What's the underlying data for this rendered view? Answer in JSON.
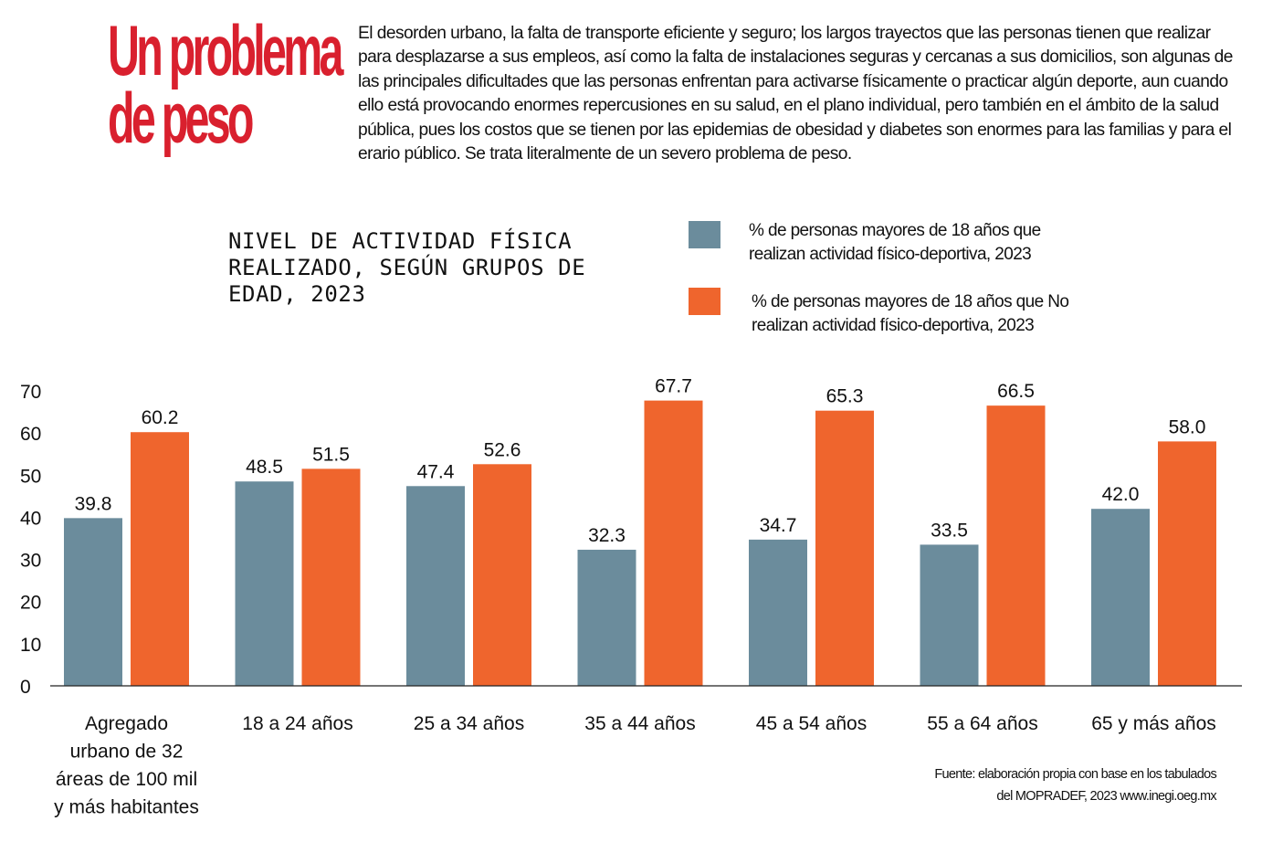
{
  "headline": {
    "line1": "Un problema",
    "line2": "de peso",
    "color": "#d9202e"
  },
  "intro_text": "El desorden urbano, la falta de transporte eficiente y seguro; los largos trayectos que las personas tienen que realizar para desplazarse a sus empleos, así como la falta de instalaciones seguras y cercanas a sus domicilios, son algunas de las principales dificultades que las personas enfrentan para activarse físicamente o practicar algún deporte, aun cuando ello está provocando enormes repercusiones en su salud, en el plano individual, pero también en el ámbito de la salud pública, pues los costos que se tienen por las epidemias de obesidad y diabetes son enormes para las familias y para el erario público. Se trata literalmente de un severo problema de peso.",
  "source": {
    "line1": "Fuente: elaboración propia con base en los tabulados",
    "line2": "del MOPRADEF, 2023 www.inegi.oeg.mx"
  },
  "chart_data": {
    "type": "bar",
    "title": "NIVEL DE ACTIVIDAD FÍSICA\nREALIZADO, SEGÚN GRUPOS DE\nEDAD, 2023",
    "xlabel": "",
    "ylabel": "",
    "ylim": [
      0,
      70
    ],
    "yticks": [
      0,
      10,
      20,
      30,
      40,
      50,
      60,
      70
    ],
    "grid": false,
    "legend_position": "top-right",
    "categories": [
      [
        "Agregado",
        "urbano de 32",
        "áreas de 100 mil",
        "y más habitantes"
      ],
      [
        "18 a 24 años"
      ],
      [
        "25 a 34 años"
      ],
      [
        "35 a 44 años"
      ],
      [
        "45 a 54 años"
      ],
      [
        "55 a 64 años"
      ],
      [
        "65 y más años"
      ]
    ],
    "series": [
      {
        "name": "% de personas mayores de 18 años que realizan actividad físico-deportiva, 2023",
        "legend_lines": [
          "% de personas mayores de 18 años que",
          "realizan actividad físico-deportiva, 2023"
        ],
        "color": "#6b8c9c",
        "values": [
          39.8,
          48.5,
          47.4,
          32.3,
          34.7,
          33.5,
          42.0
        ]
      },
      {
        "name": "% de personas mayores de 18 años que No realizan actividad físico-deportiva, 2023",
        "legend_lines": [
          "% de personas mayores de 18 años que No",
          "realizan actividad físico-deportiva, 2023"
        ],
        "color": "#ef652d",
        "values": [
          60.2,
          51.5,
          52.6,
          67.7,
          65.3,
          66.5,
          58.0
        ]
      }
    ]
  }
}
